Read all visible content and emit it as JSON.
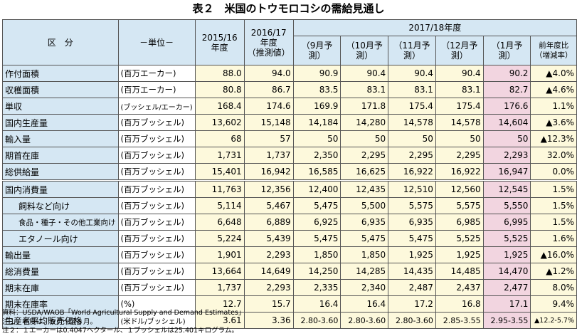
{
  "title": "表２　米国のトウモロコシの需給見通し",
  "header": {
    "category": "区　分",
    "unit": "－単位－",
    "col_2015": "2015/16\n年度",
    "col_2016": "2016/17\n年度\n（推測値）",
    "col_2017": "2017/18年度",
    "sub": [
      "（9月予測）",
      "（10月予測）",
      "（11月予測）",
      "（12月予測）",
      "（1月予測）",
      "前年度比\n（増減率）"
    ]
  },
  "rows": [
    {
      "item": "作付面積",
      "unit": "(百万エーカー)",
      "v": [
        "88.0",
        "94.0",
        "90.9",
        "90.4",
        "90.4",
        "90.4",
        "90.2",
        "▲4.0%"
      ]
    },
    {
      "item": "収穫面積",
      "unit": "(百万エーカー)",
      "v": [
        "80.8",
        "86.7",
        "83.5",
        "83.1",
        "83.1",
        "83.1",
        "82.7",
        "▲4.6%"
      ]
    },
    {
      "item": "単収",
      "unit": "(ブッシェル/エーカー)",
      "v": [
        "168.4",
        "174.6",
        "169.9",
        "171.8",
        "175.4",
        "175.4",
        "176.6",
        "1.1%"
      ]
    },
    {
      "item": "国内生産量",
      "unit": "(百万ブッシェル)",
      "v": [
        "13,602",
        "15,148",
        "14,184",
        "14,280",
        "14,578",
        "14,578",
        "14,604",
        "▲3.6%"
      ]
    },
    {
      "item": "輸入量",
      "unit": "(百万ブッシェル)",
      "v": [
        "68",
        "57",
        "50",
        "50",
        "50",
        "50",
        "50",
        "▲12.3%"
      ]
    },
    {
      "item": "期首在庫",
      "unit": "(百万ブッシェル)",
      "v": [
        "1,731",
        "1,737",
        "2,350",
        "2,295",
        "2,295",
        "2,295",
        "2,293",
        "32.0%"
      ]
    },
    {
      "item": "総供給量",
      "unit": "(百万ブッシェル)",
      "v": [
        "15,401",
        "16,942",
        "16,585",
        "16,625",
        "16,922",
        "16,922",
        "16,947",
        "0.0%"
      ]
    },
    {
      "item": "国内消費量",
      "unit": "(百万ブッシェル)",
      "v": [
        "11,763",
        "12,356",
        "12,400",
        "12,435",
        "12,510",
        "12,560",
        "12,545",
        "1.5%"
      ]
    },
    {
      "item": "飼料など向け",
      "unit": "(百万ブッシェル)",
      "v": [
        "5,114",
        "5,467",
        "5,475",
        "5,500",
        "5,575",
        "5,575",
        "5,550",
        "1.5%"
      ]
    },
    {
      "item": "食品・種子・その他工業向け",
      "unit": "(百万ブッシェル)",
      "v": [
        "6,648",
        "6,889",
        "6,925",
        "6,935",
        "6,935",
        "6,985",
        "6,995",
        "1.5%"
      ]
    },
    {
      "item": "エタノール向け",
      "unit": "(百万ブッシェル)",
      "v": [
        "5,224",
        "5,439",
        "5,475",
        "5,475",
        "5,475",
        "5,525",
        "5,525",
        "1.6%"
      ]
    },
    {
      "item": "輸出量",
      "unit": "(百万ブッシェル)",
      "v": [
        "1,901",
        "2,293",
        "1,850",
        "1,850",
        "1,925",
        "1,925",
        "1,925",
        "▲16.0%"
      ]
    },
    {
      "item": "総消費量",
      "unit": "(百万ブッシェル)",
      "v": [
        "13,664",
        "14,649",
        "14,250",
        "14,285",
        "14,435",
        "14,485",
        "14,470",
        "▲1.2%"
      ]
    },
    {
      "item": "期末在庫",
      "unit": "(百万ブッシェル)",
      "v": [
        "1,737",
        "2,293",
        "2,335",
        "2,340",
        "2,487",
        "2,437",
        "2,477",
        "8.0%"
      ]
    },
    {
      "item": "期末在庫率",
      "unit": "(%)",
      "v": [
        "12.7",
        "15.7",
        "16.4",
        "16.4",
        "17.2",
        "16.8",
        "17.1",
        "9.4%"
      ]
    },
    {
      "item": "生産者平均販売価格",
      "unit": "(米ドル/ブッシェル)",
      "v": [
        "3.61",
        "3.36",
        "2.80-3.60",
        "2.80-3.60",
        "2.80-3.60",
        "2.85-3.55",
        "2.95-3.55",
        "▲12.2-5.7%"
      ]
    }
  ],
  "notes": [
    "資料：USDA/WAOB「World Agricultural Supply and Demand Estimates」",
    "注１：年度は、９月～翌８月。",
    "注２：１エーカーは0.4047ヘクタール、１ブッシェルは25.401キログラム。"
  ]
}
